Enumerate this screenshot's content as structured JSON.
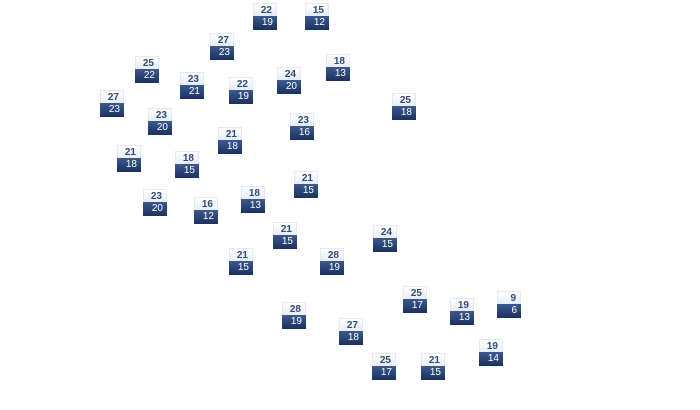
{
  "markers": [
    {
      "high": "22",
      "low": "19"
    },
    {
      "high": "15",
      "low": "12"
    },
    {
      "high": "27",
      "low": "23"
    },
    {
      "high": "25",
      "low": "22"
    },
    {
      "high": "18",
      "low": "13"
    },
    {
      "high": "23",
      "low": "21"
    },
    {
      "high": "22",
      "low": "19"
    },
    {
      "high": "24",
      "low": "20"
    },
    {
      "high": "27",
      "low": "23"
    },
    {
      "high": "25",
      "low": "18"
    },
    {
      "high": "23",
      "low": "20"
    },
    {
      "high": "23",
      "low": "16"
    },
    {
      "high": "21",
      "low": "18"
    },
    {
      "high": "21",
      "low": "18"
    },
    {
      "high": "18",
      "low": "15"
    },
    {
      "high": "21",
      "low": "15"
    },
    {
      "high": "18",
      "low": "13"
    },
    {
      "high": "23",
      "low": "20"
    },
    {
      "high": "16",
      "low": "12"
    },
    {
      "high": "21",
      "low": "15"
    },
    {
      "high": "24",
      "low": "15"
    },
    {
      "high": "21",
      "low": "15"
    },
    {
      "high": "28",
      "low": "19"
    },
    {
      "high": "25",
      "low": "17"
    },
    {
      "high": "19",
      "low": "13"
    },
    {
      "high": "9",
      "low": "6"
    },
    {
      "high": "28",
      "low": "19"
    },
    {
      "high": "27",
      "low": "18"
    },
    {
      "high": "19",
      "low": "14"
    },
    {
      "high": "25",
      "low": "17"
    },
    {
      "high": "21",
      "low": "15"
    }
  ],
  "colors": {
    "high_text": "#2f4a80",
    "low_bg": "#1e3666",
    "low_text": "#ffffff"
  }
}
